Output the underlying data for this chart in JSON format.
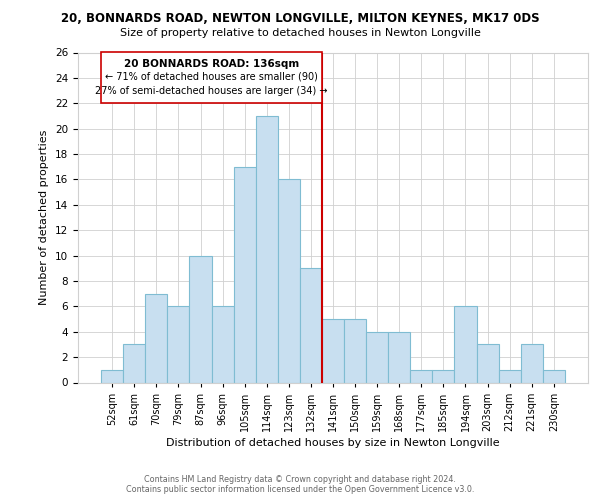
{
  "title": "20, BONNARDS ROAD, NEWTON LONGVILLE, MILTON KEYNES, MK17 0DS",
  "subtitle": "Size of property relative to detached houses in Newton Longville",
  "xlabel": "Distribution of detached houses by size in Newton Longville",
  "ylabel": "Number of detached properties",
  "bin_labels": [
    "52sqm",
    "61sqm",
    "70sqm",
    "79sqm",
    "87sqm",
    "96sqm",
    "105sqm",
    "114sqm",
    "123sqm",
    "132sqm",
    "141sqm",
    "150sqm",
    "159sqm",
    "168sqm",
    "177sqm",
    "185sqm",
    "194sqm",
    "203sqm",
    "212sqm",
    "221sqm",
    "230sqm"
  ],
  "bar_heights": [
    1,
    3,
    7,
    6,
    10,
    6,
    17,
    21,
    16,
    9,
    5,
    5,
    4,
    4,
    1,
    1,
    6,
    3,
    1,
    3,
    1
  ],
  "bar_color": "#c8dff0",
  "bar_edge_color": "#7fbcd2",
  "vline_x_index": 9.5,
  "annotation_text_line1": "20 BONNARDS ROAD: 136sqm",
  "annotation_text_line2": "← 71% of detached houses are smaller (90)",
  "annotation_text_line3": "27% of semi-detached houses are larger (34) →",
  "vline_color": "#cc0000",
  "box_color": "#cc0000",
  "ylim": [
    0,
    26
  ],
  "yticks": [
    0,
    2,
    4,
    6,
    8,
    10,
    12,
    14,
    16,
    18,
    20,
    22,
    24,
    26
  ],
  "footer_line1": "Contains HM Land Registry data © Crown copyright and database right 2024.",
  "footer_line2": "Contains public sector information licensed under the Open Government Licence v3.0.",
  "bg_color": "#ffffff",
  "grid_color": "#d0d0d0",
  "title_fontsize": 8.5,
  "subtitle_fontsize": 8.0
}
